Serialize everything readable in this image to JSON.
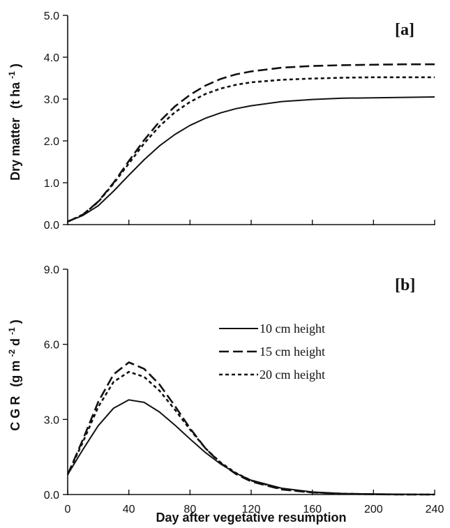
{
  "chart_data": [
    {
      "panel_label": "[a]",
      "type": "line",
      "ylabel": "Dry matter",
      "ylabel_unit_base": "(t ha",
      "ylabel_unit_sup": "-1",
      "ylabel_unit_end": ")",
      "xlim": [
        0,
        240
      ],
      "ylim": [
        0,
        5.0
      ],
      "yticks": [
        0.0,
        1.0,
        2.0,
        3.0,
        4.0,
        5.0
      ],
      "ytick_labels": [
        "0.0",
        "1.0",
        "2.0",
        "3.0",
        "4.0",
        "5.0"
      ],
      "xticks": [
        0,
        40,
        80,
        120,
        160,
        200,
        240
      ],
      "grid": false,
      "x": [
        0,
        10,
        20,
        30,
        40,
        50,
        60,
        70,
        80,
        90,
        100,
        110,
        120,
        140,
        160,
        180,
        200,
        220,
        240
      ],
      "series": [
        {
          "style": "solid",
          "values": [
            0.07,
            0.22,
            0.45,
            0.8,
            1.18,
            1.55,
            1.88,
            2.15,
            2.37,
            2.54,
            2.67,
            2.77,
            2.84,
            2.94,
            2.99,
            3.02,
            3.03,
            3.04,
            3.05
          ]
        },
        {
          "style": "dashed",
          "values": [
            0.07,
            0.24,
            0.55,
            1.0,
            1.52,
            2.02,
            2.46,
            2.82,
            3.1,
            3.32,
            3.48,
            3.59,
            3.66,
            3.75,
            3.79,
            3.81,
            3.82,
            3.83,
            3.83
          ]
        },
        {
          "style": "dotted",
          "values": [
            0.07,
            0.24,
            0.54,
            0.98,
            1.46,
            1.94,
            2.35,
            2.68,
            2.93,
            3.12,
            3.25,
            3.34,
            3.4,
            3.46,
            3.49,
            3.51,
            3.52,
            3.52,
            3.52
          ]
        }
      ]
    },
    {
      "panel_label": "[b]",
      "type": "line",
      "ylabel": "C G R",
      "ylabel_unit_base": "(g m",
      "ylabel_unit_sup1": "-2",
      "ylabel_unit_mid": " d",
      "ylabel_unit_sup2": "-1",
      "ylabel_unit_end": ")",
      "xlabel": "Day after vegetative resumption",
      "xlim": [
        0,
        240
      ],
      "ylim": [
        0,
        9.0
      ],
      "yticks": [
        0.0,
        3.0,
        6.0,
        9.0
      ],
      "ytick_labels": [
        "0.0",
        "3.0",
        "6.0",
        "9.0"
      ],
      "xticks": [
        0,
        40,
        80,
        120,
        160,
        200,
        240
      ],
      "xtick_labels": [
        "0",
        "40",
        "80",
        "120",
        "160",
        "200",
        "240"
      ],
      "grid": false,
      "legend_placement": "center-right",
      "x": [
        0,
        10,
        20,
        30,
        40,
        50,
        60,
        70,
        80,
        90,
        100,
        110,
        120,
        140,
        160,
        180,
        200,
        220,
        240
      ],
      "series": [
        {
          "name": "10 cm height",
          "style": "solid",
          "values": [
            0.8,
            1.8,
            2.75,
            3.45,
            3.78,
            3.68,
            3.3,
            2.78,
            2.22,
            1.68,
            1.22,
            0.85,
            0.57,
            0.25,
            0.1,
            0.04,
            0.02,
            0.01,
            0.0
          ]
        },
        {
          "name": "15 cm height",
          "style": "dashed",
          "values": [
            0.8,
            2.2,
            3.7,
            4.8,
            5.28,
            5.02,
            4.4,
            3.55,
            2.65,
            1.85,
            1.25,
            0.82,
            0.52,
            0.2,
            0.08,
            0.03,
            0.01,
            0.0,
            0.0
          ]
        },
        {
          "name": "20 cm height",
          "style": "dotted",
          "values": [
            0.8,
            2.1,
            3.5,
            4.5,
            4.9,
            4.7,
            4.15,
            3.4,
            2.6,
            1.85,
            1.28,
            0.86,
            0.56,
            0.22,
            0.09,
            0.03,
            0.01,
            0.0,
            0.0
          ]
        }
      ]
    }
  ]
}
